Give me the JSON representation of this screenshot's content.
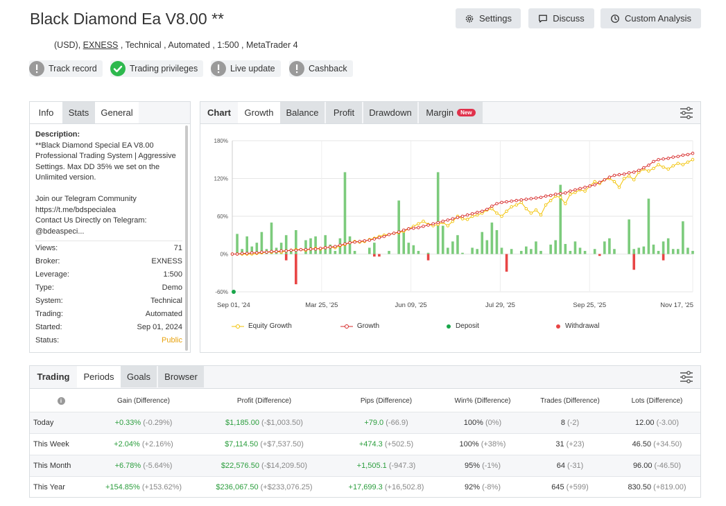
{
  "header": {
    "title": "Black Diamond Ea V8.00 **",
    "sub_prefix": "(USD), ",
    "broker_link": "EXNESS",
    "sub_suffix": " , Technical , Automated , 1:500 , MetaTrader 4",
    "buttons": {
      "settings": "Settings",
      "discuss": "Discuss",
      "custom_analysis": "Custom Analysis"
    },
    "badges": [
      {
        "label": "Track record",
        "icon": "exclamation-icon"
      },
      {
        "label": "Trading privileges",
        "icon": "check-icon"
      },
      {
        "label": "Live update",
        "icon": "exclamation-icon"
      },
      {
        "label": "Cashback",
        "icon": "exclamation-icon"
      }
    ]
  },
  "info_panel": {
    "tabs": [
      "Info",
      "Stats",
      "General"
    ],
    "description_label": "Description:",
    "description_lines": [
      "**Black Diamond Special EA V8.00",
      "Professional Trading System | Aggressive",
      "Settings. Max DD 35% we set on the",
      "Unlimited version.",
      "",
      "Join our Telegram Community",
      "https://t.me/bdspecialea",
      "Contact Us Directly on Telegram:",
      "@bdeaspeci..."
    ],
    "rows": [
      {
        "k": "Views:",
        "v": "71"
      },
      {
        "k": "Broker:",
        "v": "EXNESS"
      },
      {
        "k": "Leverage:",
        "v": "1:500"
      },
      {
        "k": "Type:",
        "v": "Demo"
      },
      {
        "k": "System:",
        "v": "Technical"
      },
      {
        "k": "Trading:",
        "v": "Automated"
      },
      {
        "k": "Started:",
        "v": "Sep 01, 2024"
      },
      {
        "k": "Status:",
        "v": "Public"
      }
    ],
    "status_color": "#e8a20e"
  },
  "chart_panel": {
    "tabs": [
      "Chart",
      "Growth",
      "Balance",
      "Profit",
      "Drawdown",
      "Margin"
    ],
    "new_badge": "New",
    "legend": [
      "Equity Growth",
      "Growth",
      "Deposit",
      "Withdrawal"
    ]
  },
  "chart_data": {
    "type": "line",
    "y_ticks": [
      "180%",
      "120%",
      "60%",
      "0%",
      "-60%"
    ],
    "y_tick_values": [
      180,
      120,
      60,
      0,
      -60
    ],
    "ylim": [
      -60,
      180
    ],
    "x_ticks": [
      "Sep 01, '24",
      "Mar 25, '25",
      "Jun 09, '25",
      "Jul 29, '25",
      "Sep 25, '25",
      "Nov 17, '25"
    ],
    "grid": true,
    "legend_position": "bottom",
    "colors": {
      "equity": "#f2c200",
      "growth": "#d62828",
      "bars_pos": "#7ccb7c",
      "bars_neg": "#e84545",
      "deposit": "#19a64a"
    },
    "growth_pct": [
      0,
      0,
      1,
      1,
      2,
      2,
      3,
      3,
      4,
      4,
      5,
      5,
      6,
      6,
      7,
      7,
      8,
      8,
      9,
      10,
      11,
      12,
      14,
      16,
      18,
      19,
      20,
      21,
      22,
      24,
      26,
      28,
      31,
      33,
      35,
      38,
      40,
      41,
      42,
      44,
      46,
      48,
      50,
      52,
      54,
      56,
      58,
      60,
      62,
      64,
      66,
      68,
      71,
      76,
      80,
      82,
      83,
      84,
      85,
      86,
      87,
      88,
      89,
      90,
      92,
      93,
      95,
      96,
      97,
      100,
      102,
      104,
      106,
      108,
      110,
      114,
      118,
      122,
      125,
      126,
      127,
      129,
      130,
      133,
      137,
      141,
      147,
      150,
      151,
      152,
      154,
      155,
      157,
      158,
      160
    ],
    "equity_growth_pct": [
      0,
      0,
      0,
      0,
      0,
      1,
      2,
      3,
      3,
      4,
      3,
      5,
      6,
      7,
      7,
      6,
      8,
      9,
      8,
      10,
      11,
      10,
      13,
      15,
      18,
      20,
      19,
      20,
      23,
      25,
      28,
      30,
      31,
      33,
      34,
      36,
      40,
      44,
      48,
      52,
      47,
      45,
      47,
      50,
      45,
      52,
      60,
      56,
      55,
      60,
      62,
      65,
      70,
      72,
      65,
      60,
      68,
      75,
      78,
      82,
      72,
      65,
      70,
      62,
      78,
      85,
      92,
      90,
      80,
      95,
      98,
      102,
      100,
      108,
      115,
      112,
      118,
      120,
      115,
      106,
      120,
      124,
      118,
      130,
      135,
      132,
      136,
      142,
      138,
      135,
      140,
      144,
      142,
      146,
      150
    ],
    "daily_change_pct": [
      0,
      32,
      8,
      28,
      12,
      18,
      35,
      8,
      50,
      10,
      18,
      30,
      5,
      38,
      0,
      22,
      25,
      28,
      10,
      30,
      15,
      5,
      25,
      130,
      28,
      5,
      0,
      0,
      10,
      18,
      0,
      0,
      5,
      0,
      85,
      40,
      18,
      14,
      5,
      0,
      2,
      0,
      130,
      45,
      10,
      20,
      30,
      2,
      0,
      10,
      8,
      35,
      22,
      50,
      38,
      10,
      0,
      8,
      0,
      5,
      12,
      8,
      20,
      5,
      0,
      15,
      22,
      110,
      16,
      5,
      20,
      10,
      5,
      0,
      8,
      0,
      20,
      25,
      8,
      0,
      0,
      55,
      8,
      10,
      12,
      88,
      15,
      5,
      20,
      25,
      8,
      8,
      52,
      10,
      5
    ],
    "withdrawals_pct": [
      [
        11,
        -10
      ],
      [
        13,
        -48
      ],
      [
        29,
        -4
      ],
      [
        30,
        -4
      ],
      [
        40,
        -10
      ],
      [
        56,
        -28
      ],
      [
        75,
        -3
      ],
      [
        82,
        -25
      ],
      [
        88,
        -10
      ]
    ],
    "deposit": [
      [
        0,
        -60
      ]
    ]
  },
  "periods_panel": {
    "tabs": [
      "Trading",
      "Periods",
      "Goals",
      "Browser"
    ],
    "columns": [
      "Gain (Difference)",
      "Profit (Difference)",
      "Pips (Difference)",
      "Win% (Difference)",
      "Trades (Difference)",
      "Lots (Difference)"
    ],
    "rows": [
      {
        "label": "Today",
        "gain": "+0.33%",
        "gain_d": "(-0.29%)",
        "profit": "$1,185.00",
        "profit_d": "(-$1,003.50)",
        "pips": "+79.0",
        "pips_d": "(-66.9)",
        "win": "100%",
        "win_d": "(0%)",
        "trades": "8",
        "trades_d": "(-2)",
        "lots": "12.00",
        "lots_d": "(-3.00)"
      },
      {
        "label": "This Week",
        "gain": "+2.04%",
        "gain_d": "(+2.16%)",
        "profit": "$7,114.50",
        "profit_d": "(+$7,537.50)",
        "pips": "+474.3",
        "pips_d": "(+502.5)",
        "win": "100%",
        "win_d": "(+38%)",
        "trades": "31",
        "trades_d": "(+23)",
        "lots": "46.50",
        "lots_d": "(+34.50)"
      },
      {
        "label": "This Month",
        "gain": "+6.78%",
        "gain_d": "(-5.64%)",
        "profit": "$22,576.50",
        "profit_d": "(-$14,209.50)",
        "pips": "+1,505.1",
        "pips_d": "(-947.3)",
        "win": "95%",
        "win_d": "(-1%)",
        "trades": "64",
        "trades_d": "(-31)",
        "lots": "96.00",
        "lots_d": "(-46.50)"
      },
      {
        "label": "This Year",
        "gain": "+154.85%",
        "gain_d": "(+153.62%)",
        "profit": "$236,067.50",
        "profit_d": "(+$233,076.25)",
        "pips": "+17,699.3",
        "pips_d": "(+16,502.8)",
        "win": "92%",
        "win_d": "(-8%)",
        "trades": "645",
        "trades_d": "(+599)",
        "lots": "830.50",
        "lots_d": "(+819.00)"
      }
    ]
  }
}
